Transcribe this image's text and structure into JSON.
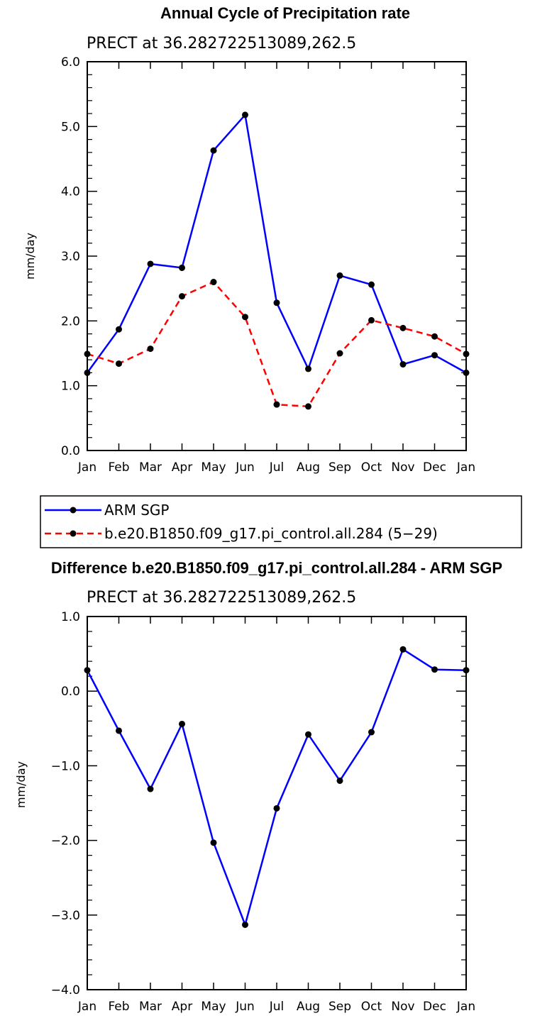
{
  "chart_data": [
    {
      "type": "line",
      "title": "Annual Cycle of Precipitation rate",
      "subtitle": "PRECT at 36.282722513089,262.5",
      "ylabel": "mm/day",
      "xlabel": "",
      "categories": [
        "Jan",
        "Feb",
        "Mar",
        "Apr",
        "May",
        "Jun",
        "Jul",
        "Aug",
        "Sep",
        "Oct",
        "Nov",
        "Dec",
        "Jan"
      ],
      "ylim": [
        0.0,
        6.0
      ],
      "ytick_labels": [
        "0.0",
        "1.0",
        "2.0",
        "3.0",
        "4.0",
        "5.0",
        "6.0"
      ],
      "grid": false,
      "legend_position": "below",
      "series": [
        {
          "name": "ARM SGP",
          "color": "#0000ff",
          "dash": "solid",
          "values": [
            1.2,
            1.87,
            2.88,
            2.82,
            4.63,
            5.18,
            2.28,
            1.26,
            2.7,
            2.56,
            1.33,
            1.47,
            1.2
          ]
        },
        {
          "name": "b.e20.B1850.f09_g17.pi_control.all.284 (5−29)",
          "color": "#ff0000",
          "dash": "dashed",
          "values": [
            1.49,
            1.34,
            1.57,
            2.38,
            2.6,
            2.06,
            0.71,
            0.68,
            1.5,
            2.01,
            1.89,
            1.76,
            1.49
          ]
        }
      ]
    },
    {
      "type": "line",
      "title": "Difference b.e20.B1850.f09_g17.pi_control.all.284 - ARM SGP",
      "subtitle": "PRECT at 36.282722513089,262.5",
      "ylabel": "mm/day",
      "xlabel": "",
      "categories": [
        "Jan",
        "Feb",
        "Mar",
        "Apr",
        "May",
        "Jun",
        "Jul",
        "Aug",
        "Sep",
        "Oct",
        "Nov",
        "Dec",
        "Jan"
      ],
      "ylim": [
        -4.0,
        1.0
      ],
      "ytick_labels": [
        "−4.0",
        "−3.0",
        "−2.0",
        "−1.0",
        "0.0",
        "1.0"
      ],
      "grid": false,
      "series": [
        {
          "color": "#0000ff",
          "dash": "solid",
          "values": [
            0.28,
            -0.53,
            -1.31,
            -0.44,
            -2.03,
            -3.13,
            -1.57,
            -0.58,
            -1.2,
            -0.55,
            0.56,
            0.29,
            0.28
          ]
        }
      ]
    }
  ]
}
